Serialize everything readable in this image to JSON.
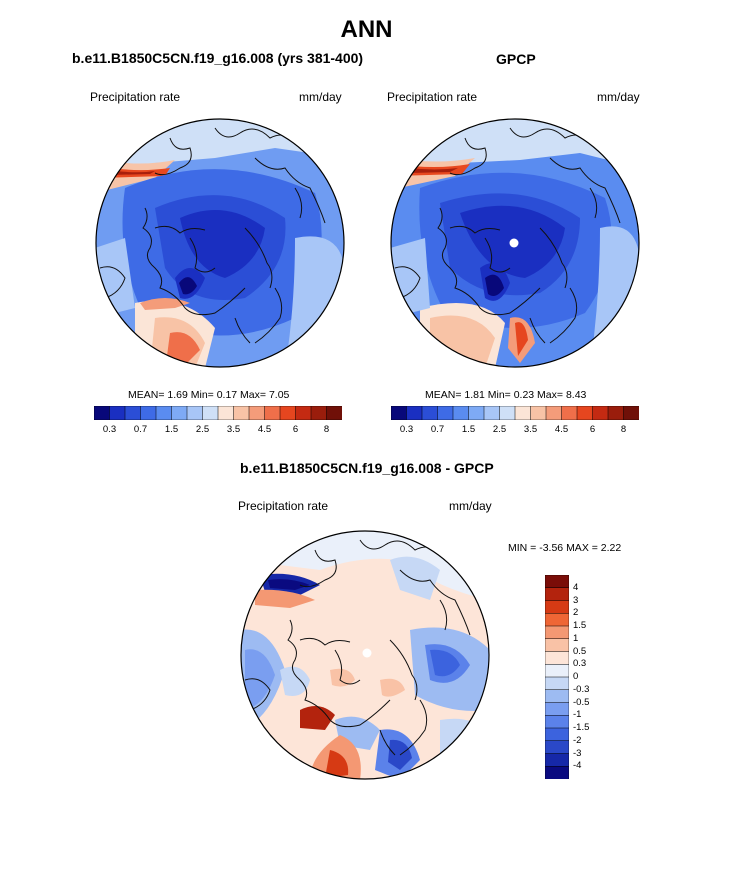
{
  "title": "ANN",
  "panels": {
    "model": {
      "title": "b.e11.B1850C5CN.f19_g16.008 (yrs 381-400)",
      "left_label": "Precipitation rate",
      "right_label": "mm/day",
      "stats": "MEAN=   1.69  Min=   0.17  Max=   7.05"
    },
    "obs": {
      "title": "GPCP",
      "left_label": "Precipitation rate",
      "right_label": "mm/day",
      "stats": "MEAN=   1.81  Min=   0.23  Max=   8.43"
    },
    "diff": {
      "title": "b.e11.B1850C5CN.f19_g16.008 - GPCP",
      "left_label": "Precipitation rate",
      "right_label": "mm/day",
      "stats": "MIN =  -3.56 MAX =   2.22"
    }
  },
  "abs_colorbar": {
    "colors": [
      "#08087a",
      "#1a2fc1",
      "#2b4ed6",
      "#3e6be6",
      "#5a8cf0",
      "#7eaaf5",
      "#a8c6f7",
      "#cfe0f7",
      "#fbe5d7",
      "#f8c3a6",
      "#f49c7a",
      "#ef6f4a",
      "#e6461f",
      "#c42a12",
      "#9a1d0c",
      "#701008"
    ],
    "ticks": [
      "0.3",
      "0.7",
      "1.5",
      "2.5",
      "3.5",
      "4.5",
      "6",
      "8"
    ]
  },
  "diff_colorbar": {
    "colors": [
      "#7a0d08",
      "#b3230d",
      "#d63a14",
      "#ef6635",
      "#f49873",
      "#f9c2a6",
      "#fde5d8",
      "#eaf0fa",
      "#c6d8f5",
      "#9dbbf2",
      "#7a9ef0",
      "#5b82ea",
      "#3c63de",
      "#2a48c8",
      "#1628a8",
      "#0a0a80"
    ],
    "ticks": [
      "4",
      "3",
      "2",
      "1.5",
      "1",
      "0.5",
      "0.3",
      "0",
      "-0.3",
      "-0.5",
      "-1",
      "-1.5",
      "-2",
      "-3",
      "-4"
    ]
  },
  "chart_data": [
    {
      "type": "heatmap",
      "projection": "north polar stereographic",
      "title": "b.e11.B1850C5CN.f19_g16.008 (yrs 381-400)",
      "variable": "Precipitation rate",
      "units": "mm/day",
      "mean": 1.69,
      "min": 0.17,
      "max": 7.05,
      "contour_levels": [
        0.2,
        0.3,
        0.5,
        0.7,
        1.0,
        1.5,
        2.0,
        2.5,
        3.0,
        3.5,
        4.0,
        4.5,
        5.0,
        6.0,
        7.0,
        8.0
      ]
    },
    {
      "type": "heatmap",
      "projection": "north polar stereographic",
      "title": "GPCP",
      "variable": "Precipitation rate",
      "units": "mm/day",
      "mean": 1.81,
      "min": 0.23,
      "max": 8.43,
      "contour_levels": [
        0.2,
        0.3,
        0.5,
        0.7,
        1.0,
        1.5,
        2.0,
        2.5,
        3.0,
        3.5,
        4.0,
        4.5,
        5.0,
        6.0,
        7.0,
        8.0
      ]
    },
    {
      "type": "heatmap",
      "projection": "north polar stereographic",
      "title": "b.e11.B1850C5CN.f19_g16.008 - GPCP",
      "variable": "Precipitation rate",
      "units": "mm/day",
      "min": -3.56,
      "max": 2.22,
      "contour_levels": [
        -4,
        -3,
        -2,
        -1.5,
        -1,
        -0.5,
        -0.3,
        0,
        0.3,
        0.5,
        1,
        1.5,
        2,
        3,
        4
      ]
    }
  ]
}
